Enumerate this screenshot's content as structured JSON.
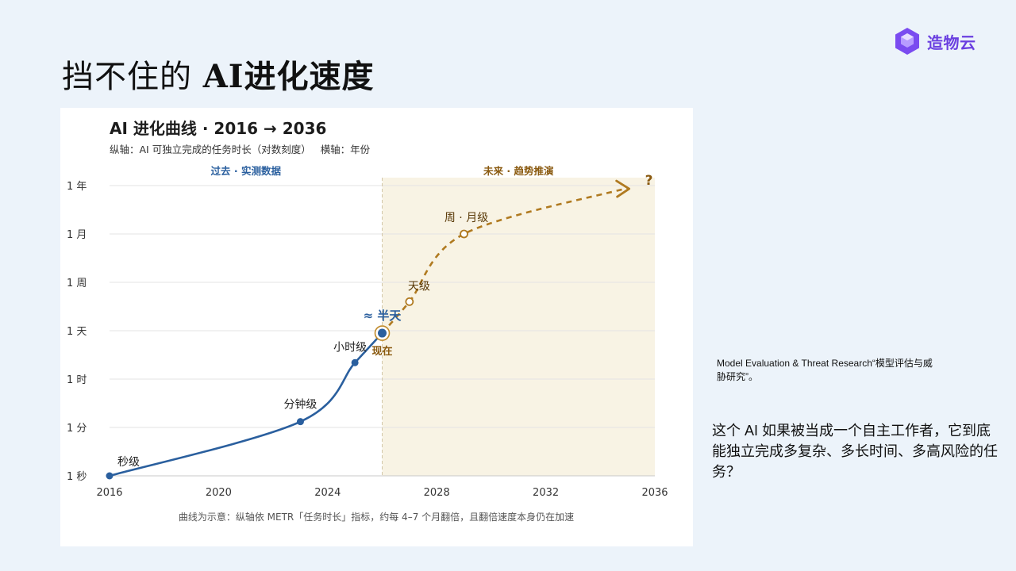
{
  "slide": {
    "title_plain": "挡不住的 ",
    "title_bold": "AI进化速度",
    "brand_name": "造物云",
    "brand_icon": "hexagon-cube-icon",
    "brand_color": "#6a3fe0",
    "side_note": "Model Evaluation & Threat Research“模型评估与威胁研究”。",
    "side_question": "这个 AI 如果被当成一个自主工作者，它到底能独立完成多复杂、多长时间、多高风险的任务？"
  },
  "chart_data": {
    "type": "line",
    "title": "AI 进化曲线 · 2016 → 2036",
    "subtitle": "纵轴：AI 可独立完成的任务时长（对数刻度）   横轴：年份",
    "footnote": "曲线为示意：纵轴依 METR「任务时长」指标，约每 4–7 个月翻倍，且翻倍速度本身仍在加速",
    "xlim": [
      2016,
      2036
    ],
    "x_ticks": [
      "2016",
      "2020",
      "2024",
      "2028",
      "2032",
      "2036"
    ],
    "y_scale": "log",
    "y_ticks": [
      "1 秒",
      "1 分",
      "1 时",
      "1 天",
      "1 周",
      "1 月",
      "1 年"
    ],
    "grid": true,
    "divider_x": 2026,
    "regions": [
      {
        "label": "过去 · 实测数据",
        "from": 2016,
        "to": 2026,
        "color": "#2a5f9e"
      },
      {
        "label": "未来 · 趋势推演",
        "from": 2026,
        "to": 2036,
        "color": "#8a5a10",
        "fill": "#f8f3e4"
      }
    ],
    "series": [
      {
        "kind": "measured",
        "color": "#2a5f9e",
        "points": [
          {
            "x": 2016.0,
            "level": 0.0,
            "label": "秒级"
          },
          {
            "x": 2023.0,
            "level": 1.12,
            "label": "分钟级"
          },
          {
            "x": 2025.0,
            "level": 2.34,
            "label": "小时级"
          },
          {
            "x": 2026.0,
            "level": 2.95,
            "label": "现在"
          }
        ]
      },
      {
        "kind": "projected",
        "color": "#b07a20",
        "points": [
          {
            "x": 2026.0,
            "level": 2.95
          },
          {
            "x": 2027.0,
            "level": 3.6,
            "label": "天级"
          },
          {
            "x": 2029.0,
            "level": 5.0,
            "label": "周 · 月级"
          },
          {
            "x": 2035.0,
            "level": 5.95,
            "label": "?"
          }
        ]
      }
    ],
    "annotations": {
      "now_value": "≈ 半天"
    }
  }
}
